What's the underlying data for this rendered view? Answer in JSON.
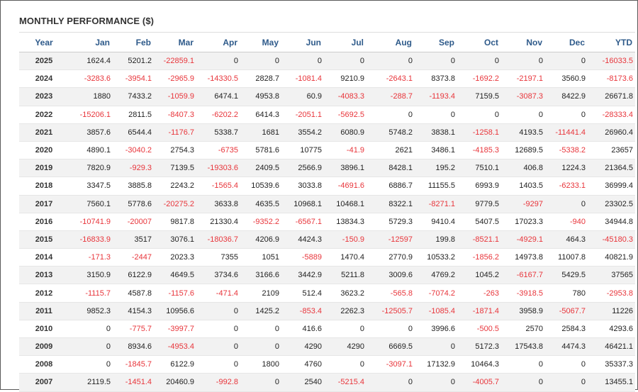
{
  "title": "MONTHLY PERFORMANCE ($)",
  "columns": [
    "Year",
    "Jan",
    "Feb",
    "Mar",
    "Apr",
    "May",
    "Jun",
    "Jul",
    "Aug",
    "Sep",
    "Oct",
    "Nov",
    "Dec",
    "YTD"
  ],
  "rows": [
    [
      "2025",
      "1624.4",
      "5201.2",
      "-22859.1",
      "0",
      "0",
      "0",
      "0",
      "0",
      "0",
      "0",
      "0",
      "0",
      "-16033.5"
    ],
    [
      "2024",
      "-3283.6",
      "-3954.1",
      "-2965.9",
      "-14330.5",
      "2828.7",
      "-1081.4",
      "9210.9",
      "-2643.1",
      "8373.8",
      "-1692.2",
      "-2197.1",
      "3560.9",
      "-8173.6"
    ],
    [
      "2023",
      "1880",
      "7433.2",
      "-1059.9",
      "6474.1",
      "4953.8",
      "60.9",
      "-4083.3",
      "-288.7",
      "-1193.4",
      "7159.5",
      "-3087.3",
      "8422.9",
      "26671.8"
    ],
    [
      "2022",
      "-15206.1",
      "2811.5",
      "-8407.3",
      "-6202.2",
      "6414.3",
      "-2051.1",
      "-5692.5",
      "0",
      "0",
      "0",
      "0",
      "0",
      "-28333.4"
    ],
    [
      "2021",
      "3857.6",
      "6544.4",
      "-1176.7",
      "5338.7",
      "1681",
      "3554.2",
      "6080.9",
      "5748.2",
      "3838.1",
      "-1258.1",
      "4193.5",
      "-11441.4",
      "26960.4"
    ],
    [
      "2020",
      "4890.1",
      "-3040.2",
      "2754.3",
      "-6735",
      "5781.6",
      "10775",
      "-41.9",
      "2621",
      "3486.1",
      "-4185.3",
      "12689.5",
      "-5338.2",
      "23657"
    ],
    [
      "2019",
      "7820.9",
      "-929.3",
      "7139.5",
      "-19303.6",
      "2409.5",
      "2566.9",
      "3896.1",
      "8428.1",
      "195.2",
      "7510.1",
      "406.8",
      "1224.3",
      "21364.5"
    ],
    [
      "2018",
      "3347.5",
      "3885.8",
      "2243.2",
      "-1565.4",
      "10539.6",
      "3033.8",
      "-4691.6",
      "6886.7",
      "11155.5",
      "6993.9",
      "1403.5",
      "-6233.1",
      "36999.4"
    ],
    [
      "2017",
      "7560.1",
      "5778.6",
      "-20275.2",
      "3633.8",
      "4635.5",
      "10968.1",
      "10468.1",
      "8322.1",
      "-8271.1",
      "9779.5",
      "-9297",
      "0",
      "23302.5"
    ],
    [
      "2016",
      "-10741.9",
      "-20007",
      "9817.8",
      "21330.4",
      "-9352.2",
      "-6567.1",
      "13834.3",
      "5729.3",
      "9410.4",
      "5407.5",
      "17023.3",
      "-940",
      "34944.8"
    ],
    [
      "2015",
      "-16833.9",
      "3517",
      "3076.1",
      "-18036.7",
      "4206.9",
      "4424.3",
      "-150.9",
      "-12597",
      "199.8",
      "-8521.1",
      "-4929.1",
      "464.3",
      "-45180.3"
    ],
    [
      "2014",
      "-171.3",
      "-2447",
      "2023.3",
      "7355",
      "1051",
      "-5889",
      "1470.4",
      "2770.9",
      "10533.2",
      "-1856.2",
      "14973.8",
      "11007.8",
      "40821.9"
    ],
    [
      "2013",
      "3150.9",
      "6122.9",
      "4649.5",
      "3734.6",
      "3166.6",
      "3442.9",
      "5211.8",
      "3009.6",
      "4769.2",
      "1045.2",
      "-6167.7",
      "5429.5",
      "37565"
    ],
    [
      "2012",
      "-1115.7",
      "4587.8",
      "-1157.6",
      "-471.4",
      "2109",
      "512.4",
      "3623.2",
      "-565.8",
      "-7074.2",
      "-263",
      "-3918.5",
      "780",
      "-2953.8"
    ],
    [
      "2011",
      "9852.3",
      "4154.3",
      "10956.6",
      "0",
      "1425.2",
      "-853.4",
      "2262.3",
      "-12505.7",
      "-1085.4",
      "-1871.4",
      "3958.9",
      "-5067.7",
      "11226"
    ],
    [
      "2010",
      "0",
      "-775.7",
      "-3997.7",
      "0",
      "0",
      "416.6",
      "0",
      "0",
      "3996.6",
      "-500.5",
      "2570",
      "2584.3",
      "4293.6"
    ],
    [
      "2009",
      "0",
      "8934.6",
      "-4953.4",
      "0",
      "0",
      "4290",
      "4290",
      "6669.5",
      "0",
      "5172.3",
      "17543.8",
      "4474.3",
      "46421.1"
    ],
    [
      "2008",
      "0",
      "-1845.7",
      "6122.9",
      "0",
      "1800",
      "4760",
      "0",
      "-3097.1",
      "17132.9",
      "10464.3",
      "0",
      "0",
      "35337.3"
    ],
    [
      "2007",
      "2119.5",
      "-1451.4",
      "20460.9",
      "-992.8",
      "0",
      "2540",
      "-5215.4",
      "0",
      "0",
      "-4005.7",
      "0",
      "0",
      "13455.1"
    ]
  ],
  "colors": {
    "header_text": "#2e5a8a",
    "negative": "#e8353b",
    "stripe": "#f2f2f2"
  }
}
